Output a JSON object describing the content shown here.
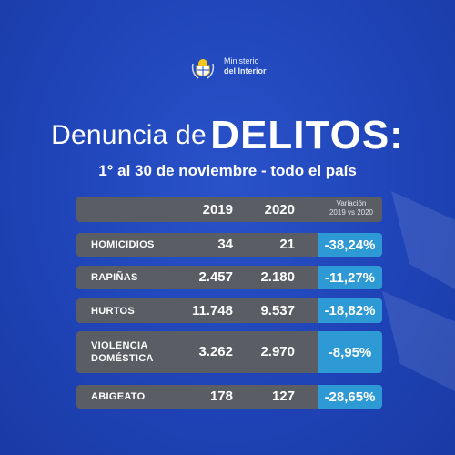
{
  "logo": {
    "line1": "Ministerio",
    "line2": "del Interior"
  },
  "title": {
    "prefix": "Denuncia de",
    "main": "DELITOS:"
  },
  "subtitle": "1° al 30 de noviembre - todo el país",
  "table": {
    "headers": {
      "y2019": "2019",
      "y2020": "2020",
      "variation_line1": "Variación",
      "variation_line2": "2019 vs 2020"
    },
    "rows": [
      {
        "label_line1": "HOMICIDIOS",
        "label_line2": "",
        "v2019": "34",
        "v2020": "21",
        "variation": "-38,24%"
      },
      {
        "label_line1": "RAPIÑAS",
        "label_line2": "",
        "v2019": "2.457",
        "v2020": "2.180",
        "variation": "-11,27%"
      },
      {
        "label_line1": "HURTOS",
        "label_line2": "",
        "v2019": "11.748",
        "v2020": "9.537",
        "variation": "-18,82%"
      },
      {
        "label_line1": "VIOLENCIA",
        "label_line2": "DOMÉSTICA",
        "v2019": "3.262",
        "v2020": "2.970",
        "variation": "-8,95%"
      },
      {
        "label_line1": "ABIGEATO",
        "label_line2": "",
        "v2019": "178",
        "v2020": "127",
        "variation": "-28,65%"
      }
    ]
  },
  "colors": {
    "background": "#1f44b8",
    "row": "#5a5d63",
    "accent": "#2d9ad6"
  }
}
